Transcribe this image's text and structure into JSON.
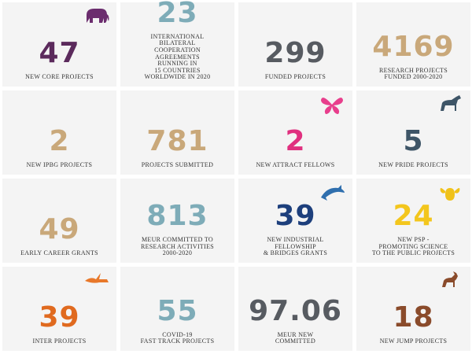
{
  "tiles": [
    {
      "number": "47",
      "label_lines": [
        "NEW CORE PROJECTS"
      ],
      "color": "#5b2a5c",
      "icon": "elephant",
      "icon_color": "#6b2d6e"
    },
    {
      "number": "23",
      "label_lines": [
        "INTERNATIONAL",
        "BILATERAL",
        "COOPERATION",
        "AGREEMENTS",
        "RUNNING IN",
        "15 COUNTRIES",
        "WORLDWIDE IN 2020"
      ],
      "color": "#7eacb8"
    },
    {
      "number": "299",
      "label_lines": [
        "FUNDED PROJECTS"
      ],
      "color": "#575b61"
    },
    {
      "number": "4169",
      "label_lines": [
        "RESEARCH PROJECTS",
        "FUNDED 2000-2020"
      ],
      "color": "#c9a87a"
    },
    {
      "number": "2",
      "label_lines": [
        "NEW IPBG PROJECTS"
      ],
      "color": "#c9a87a"
    },
    {
      "number": "781",
      "label_lines": [
        "PROJECTS SUBMITTED"
      ],
      "color": "#c9a87a"
    },
    {
      "number": "2",
      "label_lines": [
        "NEW ATTRACT FELLOWS"
      ],
      "color": "#e0307f",
      "icon": "butterfly",
      "icon_color": "#e83e8c"
    },
    {
      "number": "5",
      "label_lines": [
        "NEW PRIDE PROJECTS"
      ],
      "color": "#3e5567",
      "icon": "horse",
      "icon_color": "#3e5567"
    },
    {
      "number": "49",
      "label_lines": [
        "EARLY CAREER GRANTS"
      ],
      "color": "#c9a87a"
    },
    {
      "number": "813",
      "label_lines": [
        "MEUR COMMITTED TO",
        "RESEARCH ACTIVITIES",
        "2000-2020"
      ],
      "color": "#7eacb8"
    },
    {
      "number": "39",
      "label_lines": [
        "NEW INDUSTRIAL",
        "FELLOWSHIP",
        "& BRIDGES GRANTS"
      ],
      "color": "#1d3f7c",
      "icon": "dolphin",
      "icon_color": "#2f6fae"
    },
    {
      "number": "24",
      "label_lines": [
        "NEW PSP -",
        "PROMOTING SCIENCE",
        "TO THE PUBLIC PROJECTS"
      ],
      "color": "#f3c61d",
      "icon": "bee",
      "icon_color": "#f0c21a"
    },
    {
      "number": "39",
      "label_lines": [
        "INTER PROJECTS"
      ],
      "color": "#e06a1f",
      "icon": "bird",
      "icon_color": "#e8782a"
    },
    {
      "number": "55",
      "label_lines": [
        "COVID-19",
        "FAST TRACK PROJECTS"
      ],
      "color": "#7eacb8"
    },
    {
      "number": "97.06",
      "label_lines": [
        "MEUR NEW",
        "COMMITTED"
      ],
      "color": "#575b61"
    },
    {
      "number": "18",
      "label_lines": [
        "NEW JUMP PROJECTS"
      ],
      "color": "#8a4b2b",
      "icon": "antelope",
      "icon_color": "#8a4b2b"
    }
  ]
}
